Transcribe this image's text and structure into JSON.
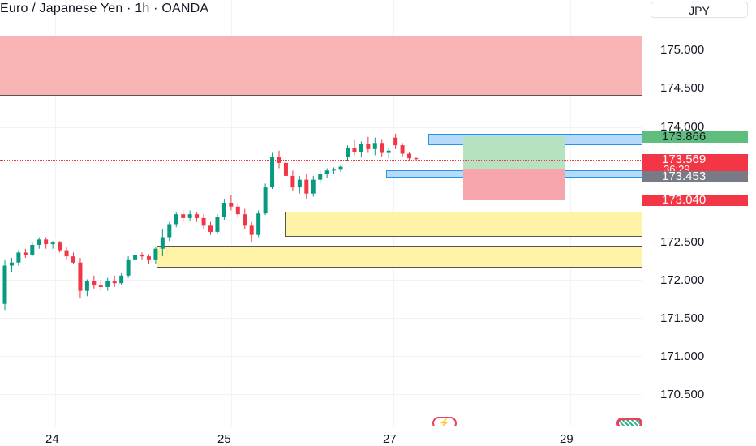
{
  "header": {
    "title": "Euro / Japanese Yen · 1h · OANDA",
    "currency": "JPY"
  },
  "price_axis": {
    "ticks": [
      "175.000",
      "174.500",
      "174.000",
      "172.500",
      "172.000",
      "171.500",
      "171.000",
      "170.500"
    ],
    "tags": {
      "target": "173.866",
      "last_price": "173.569",
      "countdown": "36:29",
      "entry": "173.453",
      "stop": "173.040"
    }
  },
  "time_axis": {
    "labels": [
      "24",
      "25",
      "27",
      "29"
    ]
  },
  "colors": {
    "up": "#089981",
    "down": "#f23645",
    "supply_zone": "#f8b3b5",
    "demand_zone": "#fef3a6",
    "level_box": "#b6daf7",
    "profit": "#b7e2c2",
    "loss": "#f7a5ad",
    "target_tag": "#5fbe7e",
    "entry_tag": "#787b86"
  },
  "icons": [
    "bolt-icon",
    "tradingview-logo-icon"
  ],
  "chart_data": {
    "type": "candlestick",
    "symbol": "EURJPY",
    "interval": "1h",
    "ylim": [
      170.4,
      175.25
    ],
    "x_labels": [
      "24",
      "25",
      "27",
      "29"
    ],
    "annotations": {
      "supply_zone": [
        174.43,
        175.19
      ],
      "demand_zone_upper": [
        172.55,
        172.86
      ],
      "demand_zone_lower": [
        172.15,
        172.43
      ],
      "level_box_upper": [
        173.8,
        173.95
      ],
      "level_box_lower": [
        173.43,
        173.52
      ],
      "long_position": {
        "target": 173.866,
        "entry": 173.453,
        "stop": 173.04
      },
      "last_price": 173.569
    },
    "candles": [
      [
        171.68,
        172.25,
        171.6,
        172.18
      ],
      [
        172.18,
        172.28,
        172.1,
        172.22
      ],
      [
        172.22,
        172.38,
        172.18,
        172.35
      ],
      [
        172.35,
        172.4,
        172.28,
        172.32
      ],
      [
        172.32,
        172.48,
        172.3,
        172.45
      ],
      [
        172.45,
        172.55,
        172.4,
        172.52
      ],
      [
        172.52,
        172.55,
        172.4,
        172.46
      ],
      [
        172.46,
        172.5,
        172.4,
        172.48
      ],
      [
        172.48,
        172.5,
        172.35,
        172.38
      ],
      [
        172.38,
        172.42,
        172.25,
        172.3
      ],
      [
        172.3,
        172.35,
        172.2,
        172.22
      ],
      [
        172.22,
        172.28,
        171.75,
        171.85
      ],
      [
        171.85,
        172.0,
        171.78,
        171.98
      ],
      [
        171.98,
        172.05,
        171.88,
        171.92
      ],
      [
        171.92,
        172.0,
        171.85,
        171.9
      ],
      [
        171.9,
        172.02,
        171.85,
        171.98
      ],
      [
        171.98,
        172.05,
        171.9,
        171.95
      ],
      [
        171.95,
        172.08,
        171.92,
        172.05
      ],
      [
        172.05,
        172.3,
        172.02,
        172.25
      ],
      [
        172.25,
        172.35,
        172.2,
        172.32
      ],
      [
        172.32,
        172.35,
        172.25,
        172.3
      ],
      [
        172.3,
        172.33,
        172.2,
        172.25
      ],
      [
        172.25,
        172.43,
        172.2,
        172.4
      ],
      [
        172.4,
        172.65,
        172.3,
        172.55
      ],
      [
        172.55,
        172.75,
        172.5,
        172.72
      ],
      [
        172.72,
        172.88,
        172.68,
        172.85
      ],
      [
        172.85,
        172.9,
        172.75,
        172.8
      ],
      [
        172.8,
        172.9,
        172.76,
        172.85
      ],
      [
        172.85,
        172.88,
        172.75,
        172.8
      ],
      [
        172.8,
        172.85,
        172.65,
        172.7
      ],
      [
        172.7,
        172.75,
        172.58,
        172.62
      ],
      [
        172.62,
        172.85,
        172.6,
        172.82
      ],
      [
        172.82,
        173.05,
        172.78,
        173.0
      ],
      [
        173.0,
        173.1,
        172.9,
        172.95
      ],
      [
        172.95,
        173.0,
        172.8,
        172.85
      ],
      [
        172.85,
        172.92,
        172.65,
        172.7
      ],
      [
        172.7,
        172.75,
        172.48,
        172.58
      ],
      [
        172.58,
        172.9,
        172.55,
        172.86
      ],
      [
        172.86,
        173.25,
        172.84,
        173.2
      ],
      [
        173.2,
        173.65,
        173.18,
        173.6
      ],
      [
        173.6,
        173.68,
        173.45,
        173.52
      ],
      [
        173.52,
        173.6,
        173.3,
        173.35
      ],
      [
        173.35,
        173.42,
        173.15,
        173.2
      ],
      [
        173.2,
        173.35,
        173.12,
        173.3
      ],
      [
        173.3,
        173.38,
        173.05,
        173.12
      ],
      [
        173.12,
        173.35,
        173.08,
        173.3
      ],
      [
        173.3,
        173.42,
        173.25,
        173.38
      ],
      [
        173.38,
        173.45,
        173.32,
        173.42
      ],
      [
        173.42,
        173.46,
        173.38,
        173.43
      ],
      [
        173.43,
        173.5,
        173.4,
        173.47
      ],
      [
        173.6,
        173.75,
        173.55,
        173.72
      ],
      [
        173.72,
        173.82,
        173.62,
        173.66
      ],
      [
        173.66,
        173.8,
        173.6,
        173.77
      ],
      [
        173.77,
        173.86,
        173.65,
        173.7
      ],
      [
        173.7,
        173.85,
        173.62,
        173.78
      ],
      [
        173.78,
        173.82,
        173.6,
        173.65
      ],
      [
        173.65,
        173.72,
        173.58,
        173.68
      ],
      [
        173.85,
        173.9,
        173.7,
        173.75
      ],
      [
        173.75,
        173.78,
        173.6,
        173.64
      ],
      [
        173.64,
        173.66,
        173.55,
        173.58
      ],
      [
        173.58,
        173.6,
        173.54,
        173.57
      ]
    ]
  }
}
